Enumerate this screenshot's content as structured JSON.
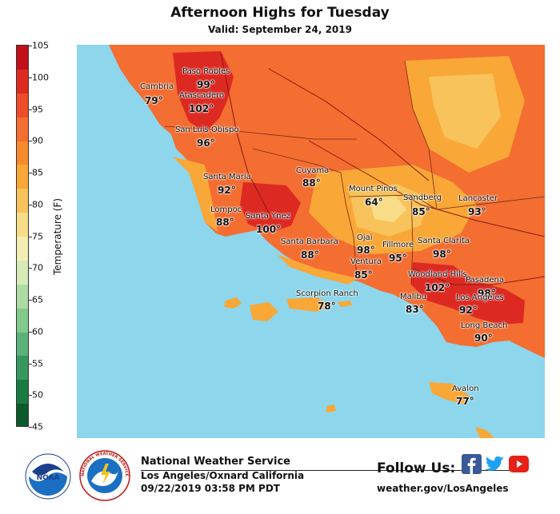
{
  "title": "Afternoon Highs for Tuesday",
  "subtitle": "Valid: September 24, 2019",
  "colorbar": {
    "label": "Temperature (F)",
    "ticks": [
      "105",
      "100",
      "95",
      "90",
      "85",
      "80",
      "75",
      "70",
      "65",
      "60",
      "55",
      "50",
      "45"
    ],
    "bands": [
      "#c2101b",
      "#dc2a22",
      "#ee4d2a",
      "#f46d31",
      "#f88a2e",
      "#f9a737",
      "#f7c35a",
      "#f8dd88",
      "#f2eeb4",
      "#d6ebb5",
      "#acdca3",
      "#82c98c",
      "#5bb278",
      "#36985f",
      "#1a7a41",
      "#0b5a2b"
    ]
  },
  "colors": {
    "ocean": "#8dd6ec",
    "land_hot": "#f46d31",
    "land_very_hot": "#dc2a22",
    "land_warm": "#f9a737",
    "land_mild": "#f7c35a",
    "land_cool": "#f8dd88"
  },
  "stations": [
    {
      "name": "Cambria",
      "temp": "79°"
    },
    {
      "name": "Paso Robles",
      "temp": "99°"
    },
    {
      "name": "Atascadero",
      "temp": "102°"
    },
    {
      "name": "San Luis Obispo",
      "temp": "96°"
    },
    {
      "name": "Santa Maria",
      "temp": "92°"
    },
    {
      "name": "Cuyama",
      "temp": "88°"
    },
    {
      "name": "Lompoc",
      "temp": "88°"
    },
    {
      "name": "Santa Ynez",
      "temp": "100°"
    },
    {
      "name": "Santa Barbara",
      "temp": "88°"
    },
    {
      "name": "Mount Pinos",
      "temp": "64°"
    },
    {
      "name": "Ojai",
      "temp": "98°"
    },
    {
      "name": "Ventura",
      "temp": "85°"
    },
    {
      "name": "Fillmore",
      "temp": "95°"
    },
    {
      "name": "Sandberg",
      "temp": "85°"
    },
    {
      "name": "Lancaster",
      "temp": "93°"
    },
    {
      "name": "Santa Clarita",
      "temp": "98°"
    },
    {
      "name": "Woodland Hills",
      "temp": "102°"
    },
    {
      "name": "Pasadena",
      "temp": "98°"
    },
    {
      "name": "Malibu",
      "temp": "83°"
    },
    {
      "name": "Los Angeles",
      "temp": "92°"
    },
    {
      "name": "Long Beach",
      "temp": "90°"
    },
    {
      "name": "Scorpion Ranch",
      "temp": "78°"
    },
    {
      "name": "Avalon",
      "temp": "77°"
    }
  ],
  "footer": {
    "agency": "National Weather Service",
    "office": "Los Angeles/Oxnard California",
    "issued": "09/22/2019 03:58 PM PDT",
    "follow": "Follow Us:",
    "website": "weather.gov/LosAngeles",
    "noaa_logo": "NOAA",
    "nws_logo_text": "NATIONAL WEATHER SERVICE"
  },
  "icons": [
    "noaa-logo",
    "nws-logo",
    "facebook-icon",
    "twitter-icon",
    "youtube-icon"
  ]
}
